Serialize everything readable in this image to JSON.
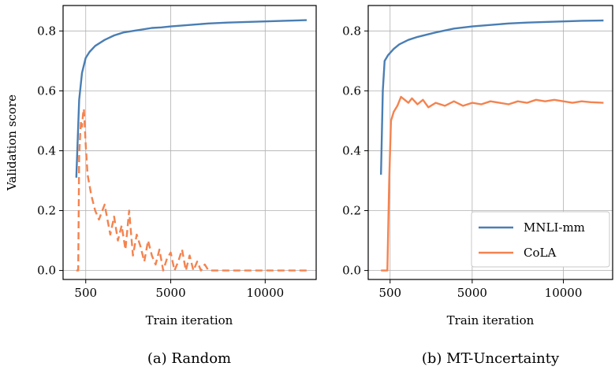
{
  "colors": {
    "mnli": "#4a7eb3",
    "cola": "#f4834f",
    "grid": "#b0b0b0"
  },
  "chart_data": [
    {
      "type": "line",
      "caption": "(a) Random",
      "xlabel": "Train iteration",
      "ylabel": "Validation score",
      "xticks": [
        500,
        5000,
        10000
      ],
      "yticks": [
        0.0,
        0.2,
        0.4,
        0.6,
        0.8
      ],
      "xlim": [
        -700,
        12700
      ],
      "ylim": [
        -0.03,
        0.885
      ],
      "grid": true,
      "legend": null,
      "series": [
        {
          "name": "MNLI-mm",
          "style": "solid",
          "x": [
            0,
            150,
            300,
            500,
            700,
            1000,
            1500,
            2000,
            2500,
            3000,
            3500,
            4000,
            4500,
            5000,
            6000,
            7000,
            8000,
            9000,
            10000,
            11000,
            12200
          ],
          "y": [
            0.31,
            0.57,
            0.66,
            0.71,
            0.73,
            0.75,
            0.77,
            0.785,
            0.795,
            0.8,
            0.805,
            0.81,
            0.812,
            0.815,
            0.82,
            0.825,
            0.828,
            0.83,
            0.832,
            0.834,
            0.836
          ]
        },
        {
          "name": "CoLA",
          "style": "dashed",
          "x": [
            0,
            100,
            150,
            200,
            250,
            300,
            350,
            400,
            500,
            600,
            800,
            1000,
            1200,
            1500,
            1800,
            2000,
            2200,
            2400,
            2600,
            2800,
            3000,
            3200,
            3400,
            3600,
            3800,
            4000,
            4200,
            4400,
            4600,
            4800,
            5000,
            5200,
            5400,
            5600,
            5800,
            6000,
            6200,
            6400,
            6600,
            6800,
            7000,
            12200
          ],
          "y": [
            0.0,
            0.0,
            0.38,
            0.45,
            0.5,
            0.48,
            0.52,
            0.54,
            0.42,
            0.32,
            0.25,
            0.2,
            0.17,
            0.22,
            0.12,
            0.18,
            0.1,
            0.15,
            0.07,
            0.2,
            0.05,
            0.12,
            0.08,
            0.03,
            0.1,
            0.05,
            0.02,
            0.07,
            0.0,
            0.04,
            0.06,
            0.0,
            0.03,
            0.07,
            0.0,
            0.05,
            0.0,
            0.03,
            0.0,
            0.02,
            0.0,
            0.0
          ]
        }
      ]
    },
    {
      "type": "line",
      "caption": "(b) MT-Uncertainty",
      "xlabel": "Train iteration",
      "ylabel": "",
      "xticks": [
        500,
        5000,
        10000
      ],
      "yticks": [
        0.0,
        0.2,
        0.4,
        0.6,
        0.8
      ],
      "xlim": [
        -700,
        12700
      ],
      "ylim": [
        -0.03,
        0.885
      ],
      "grid": true,
      "legend": "lower-right",
      "series": [
        {
          "name": "MNLI-mm",
          "style": "solid",
          "x": [
            0,
            100,
            200,
            400,
            700,
            1000,
            1500,
            2000,
            3000,
            4000,
            5000,
            6000,
            7000,
            8000,
            9000,
            10000,
            11000,
            12200
          ],
          "y": [
            0.32,
            0.6,
            0.7,
            0.72,
            0.74,
            0.755,
            0.77,
            0.78,
            0.795,
            0.808,
            0.815,
            0.82,
            0.825,
            0.828,
            0.83,
            0.832,
            0.834,
            0.835
          ]
        },
        {
          "name": "CoLA",
          "style": "solid",
          "x": [
            0,
            200,
            350,
            450,
            550,
            700,
            900,
            1100,
            1300,
            1500,
            1700,
            2000,
            2300,
            2600,
            3000,
            3500,
            4000,
            4500,
            5000,
            5500,
            6000,
            6500,
            7000,
            7500,
            8000,
            8500,
            9000,
            9500,
            10000,
            10500,
            11000,
            11500,
            12200
          ],
          "y": [
            0.0,
            0.0,
            0.0,
            0.3,
            0.5,
            0.53,
            0.55,
            0.58,
            0.57,
            0.56,
            0.575,
            0.555,
            0.57,
            0.545,
            0.56,
            0.55,
            0.565,
            0.55,
            0.56,
            0.555,
            0.565,
            0.56,
            0.555,
            0.565,
            0.56,
            0.57,
            0.565,
            0.57,
            0.565,
            0.56,
            0.565,
            0.562,
            0.56
          ]
        }
      ]
    }
  ]
}
